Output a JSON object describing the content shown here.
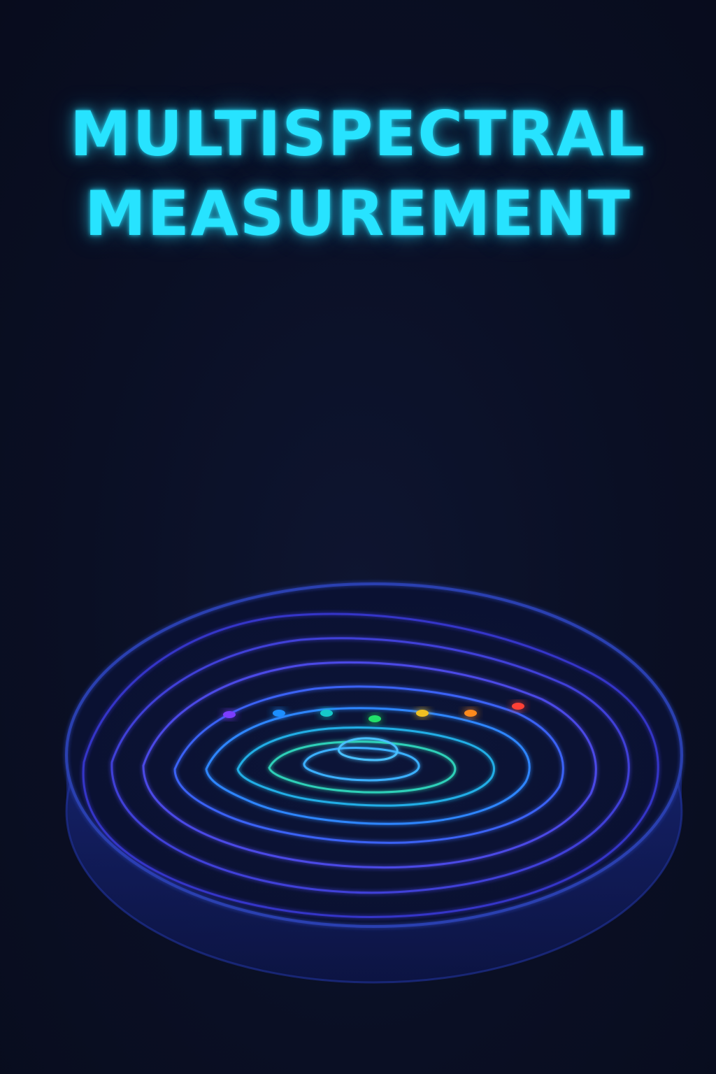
{
  "title": {
    "line1": "MULTISPECTRAL",
    "line2": "MEASUREMENT",
    "color": "#27e3ff"
  },
  "background_color": "#0a0f24",
  "beams": [
    {
      "name": "violet-beam",
      "color": "#7b3cff"
    },
    {
      "name": "blue-beam",
      "color": "#1f8fff"
    },
    {
      "name": "teal-beam",
      "color": "#18c9c9"
    },
    {
      "name": "green-beam",
      "color": "#22e06a"
    },
    {
      "name": "yellow-beam",
      "color": "#f0c020"
    },
    {
      "name": "orange-beam",
      "color": "#ff8a1c"
    },
    {
      "name": "red-beam",
      "color": "#ff4035"
    }
  ],
  "disk": {
    "rim_color": "#2b3fb0",
    "contour_colors": [
      "#3a3ad8",
      "#4a48e8",
      "#5a52f0",
      "#2f7cff",
      "#1fb0e0",
      "#3bd9a0",
      "#a9e04a"
    ]
  }
}
